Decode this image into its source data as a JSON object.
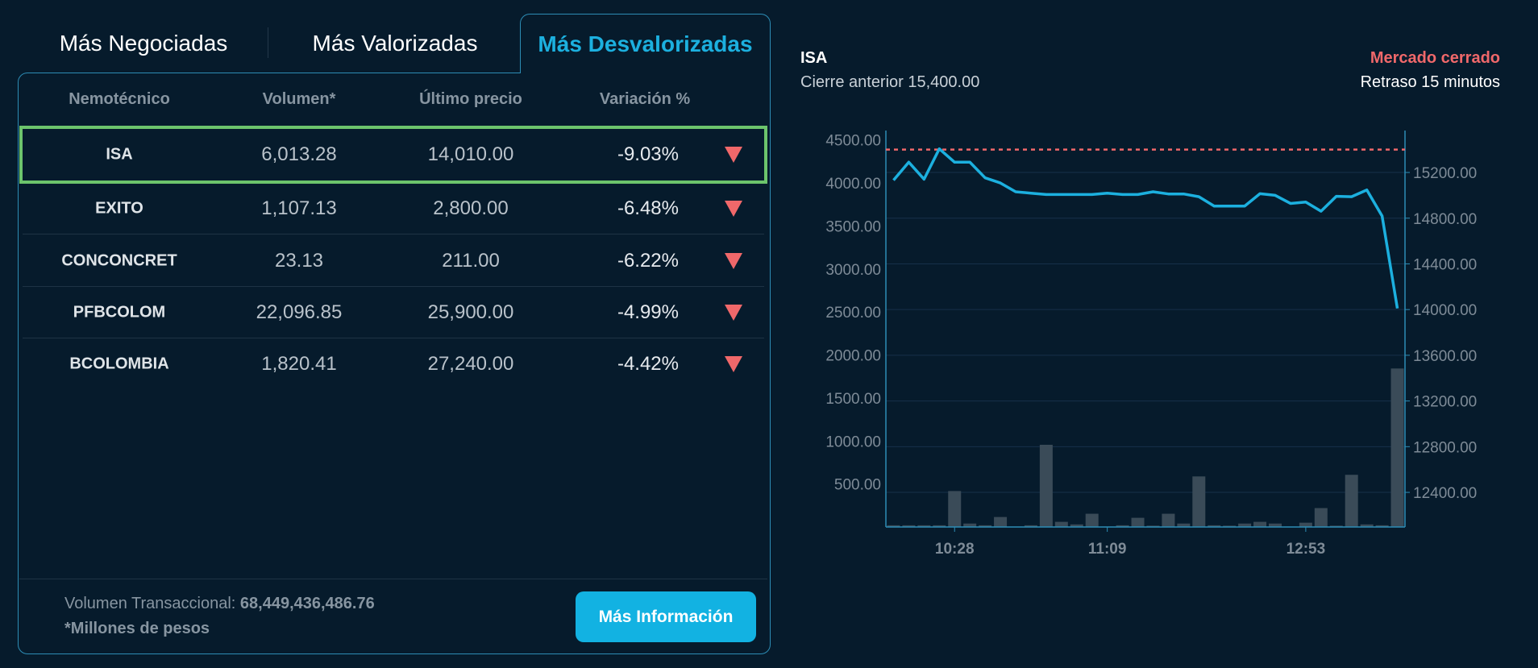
{
  "tabs": [
    {
      "label": "Más Negociadas"
    },
    {
      "label": "Más Valorizadas"
    },
    {
      "label": "Más Desvalorizadas",
      "active": true
    }
  ],
  "table": {
    "headers": [
      "Nemotécnico",
      "Volumen*",
      "Último precio",
      "Variación %"
    ],
    "rows": [
      {
        "symbol": "ISA",
        "volume": "6,013.28",
        "price": "14,010.00",
        "change": "-9.03%",
        "direction": "down",
        "selected": true
      },
      {
        "symbol": "EXITO",
        "volume": "1,107.13",
        "price": "2,800.00",
        "change": "-6.48%",
        "direction": "down"
      },
      {
        "symbol": "CONCONCRET",
        "volume": "23.13",
        "price": "211.00",
        "change": "-6.22%",
        "direction": "down"
      },
      {
        "symbol": "PFBCOLOM",
        "volume": "22,096.85",
        "price": "25,900.00",
        "change": "-4.99%",
        "direction": "down"
      },
      {
        "symbol": "BCOLOMBIA",
        "volume": "1,820.41",
        "price": "27,240.00",
        "change": "-4.42%",
        "direction": "down"
      }
    ]
  },
  "footer": {
    "volume_label": "Volumen Transaccional: ",
    "volume_value": "68,449,436,486.76",
    "note": "*Millones de pesos",
    "button": "Más Información"
  },
  "detail": {
    "symbol": "ISA",
    "previous_close": "Cierre anterior 15,400.00",
    "market_status": "Mercado cerrado",
    "delay": "Retraso 15 minutos"
  },
  "colors": {
    "accent": "#1cb0df",
    "down": "#f0686a",
    "selected_border": "#6cc46c",
    "background": "#061b2c",
    "volume_bar": "#3a4b58"
  },
  "chart_data": {
    "type": "line+bar",
    "left_axis": {
      "ylim": [
        0,
        4610
      ],
      "ticks": [
        "500.00",
        "1000.00",
        "1500.00",
        "2000.00",
        "2500.00",
        "3000.00",
        "3500.00",
        "4000.00",
        "4500.00"
      ]
    },
    "right_axis": {
      "ylim": [
        12097,
        15567
      ],
      "ticks": [
        "12400.00",
        "12800.00",
        "13200.00",
        "13600.00",
        "14000.00",
        "14400.00",
        "14800.00",
        "15200.00"
      ]
    },
    "x_ticks": [
      {
        "label": "10:28",
        "index": 4
      },
      {
        "label": "11:09",
        "index": 14
      },
      {
        "label": "12:53",
        "index": 27
      }
    ],
    "reference_line": 15400,
    "grid": true,
    "price": [
      15132,
      15290,
      15141,
      15407,
      15290,
      15290,
      15153,
      15108,
      15031,
      15019,
      15007,
      15007,
      15007,
      15007,
      15019,
      15007,
      15007,
      15031,
      15012,
      15012,
      14988,
      14906,
      14906,
      14906,
      15014,
      15000,
      14929,
      14941,
      14861,
      14991,
      14988,
      15047,
      14819,
      14010
    ],
    "volume": [
      20,
      20,
      20,
      20,
      418,
      40,
      20,
      116,
      5,
      20,
      956,
      60,
      30,
      154,
      5,
      20,
      107,
      15,
      154,
      40,
      588,
      20,
      15,
      40,
      60,
      40,
      5,
      50,
      220,
      15,
      607,
      30,
      20,
      1843
    ]
  }
}
